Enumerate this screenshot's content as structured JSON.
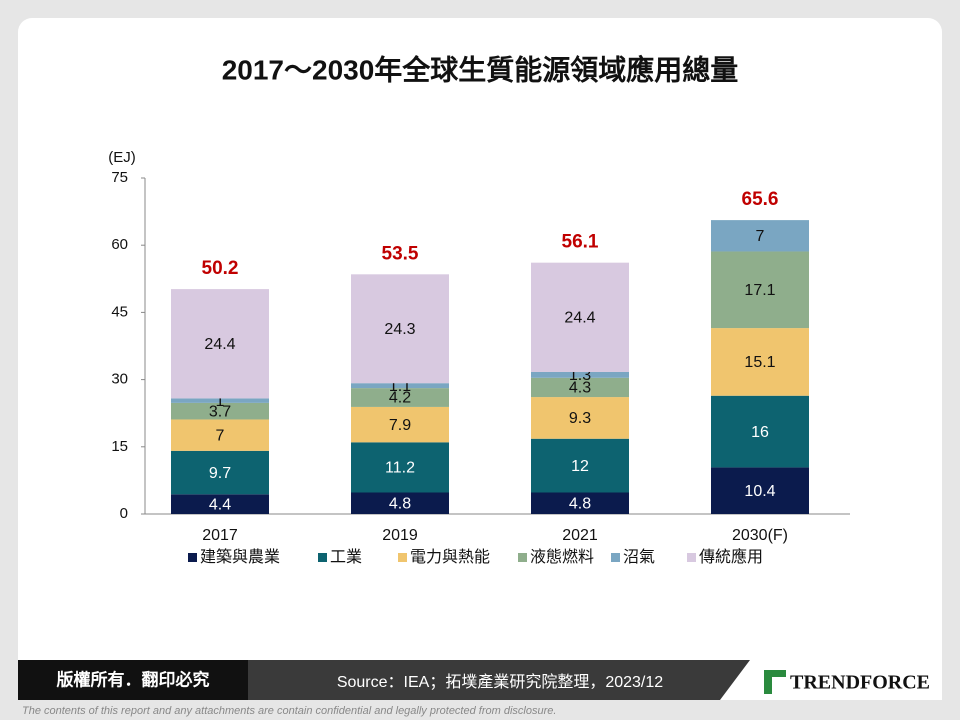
{
  "chart_data": {
    "type": "stacked_bar",
    "title": "2017～2030年全球生質能源領域應用總量",
    "y_unit": "(EJ)",
    "categories": [
      "2017",
      "2019",
      "2021",
      "2030(F)"
    ],
    "series": [
      {
        "name": "建築與農業",
        "color": "#0b1b4d",
        "values": [
          4.4,
          4.8,
          4.8,
          10.4
        ]
      },
      {
        "name": "工業",
        "color": "#0d6370",
        "values": [
          9.7,
          11.2,
          12,
          16
        ]
      },
      {
        "name": "電力與熱能",
        "color": "#f0c56e",
        "values": [
          7,
          7.9,
          9.3,
          15.1
        ]
      },
      {
        "name": "液態燃料",
        "color": "#8fae8c",
        "values": [
          3.7,
          4.2,
          4.3,
          17.1
        ]
      },
      {
        "name": "沼氣",
        "color": "#7aa6c2",
        "values": [
          1,
          1.1,
          1.3,
          7
        ]
      },
      {
        "name": "傳統應用",
        "color": "#d8c9e0",
        "values": [
          24.4,
          24.3,
          24.4,
          null
        ]
      }
    ],
    "totals": [
      50.2,
      53.5,
      56.1,
      65.6
    ],
    "ylim": [
      0,
      75
    ],
    "yticks": [
      0,
      15,
      30,
      45,
      60,
      75
    ],
    "total_color": "#c00000"
  },
  "footer": {
    "copyright": "版權所有．翻印必究",
    "source": "Source：IEA；拓墣產業研究院整理，2023/12",
    "brand": "TRENDFORCE",
    "disclaimer": "The contents of this report and any attachments are contain confidential and legally protected from disclosure."
  }
}
